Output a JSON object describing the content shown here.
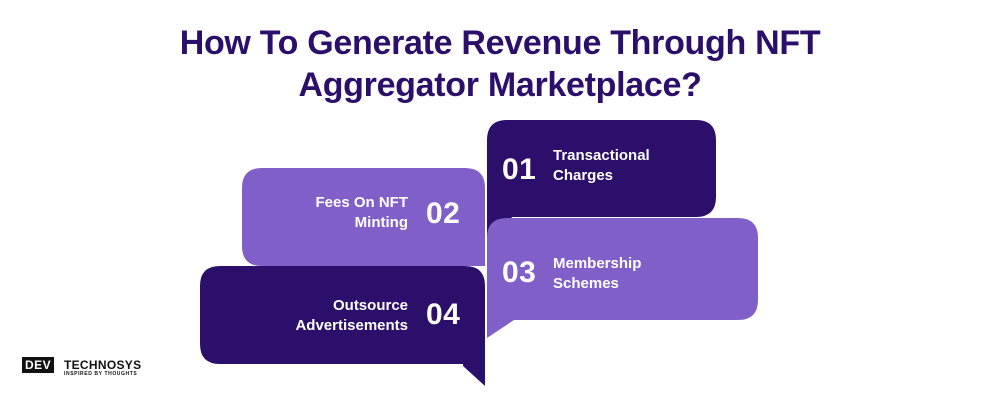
{
  "title": {
    "line1": "How To Generate Revenue Through NFT",
    "line2": "Aggregator Marketplace?"
  },
  "items": [
    {
      "number": "01",
      "line1": "Transactional",
      "line2": "Charges"
    },
    {
      "number": "02",
      "line1": "Fees On NFT",
      "line2": "Minting"
    },
    {
      "number": "03",
      "line1": "Membership",
      "line2": "Schemes"
    },
    {
      "number": "04",
      "line1": "Outsource",
      "line2": "Advertisements"
    }
  ],
  "logo": {
    "left": "DEV",
    "right": "TECHNOSYS",
    "tagline": "INSPIRED BY THOUGHTS"
  },
  "colors": {
    "dark_purple": "#2c0f6b",
    "light_purple": "#8060c8",
    "title": "#2c0f6b"
  }
}
